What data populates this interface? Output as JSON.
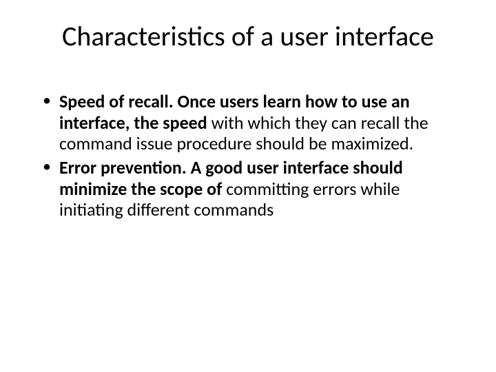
{
  "slide": {
    "title": "Characteristics of a user interface",
    "bullets": [
      {
        "bold": "Speed of recall. Once users learn how to use an interface, the speed ",
        "rest": "with which they can recall the command issue procedure should be maximized."
      },
      {
        "bold": "Error prevention. A good user interface should minimize the scope of ",
        "rest": "committing errors while initiating different commands"
      }
    ]
  },
  "style": {
    "background_color": "#ffffff",
    "text_color": "#000000",
    "title_fontsize": 40,
    "body_fontsize": 26,
    "font_family": "Calibri"
  }
}
